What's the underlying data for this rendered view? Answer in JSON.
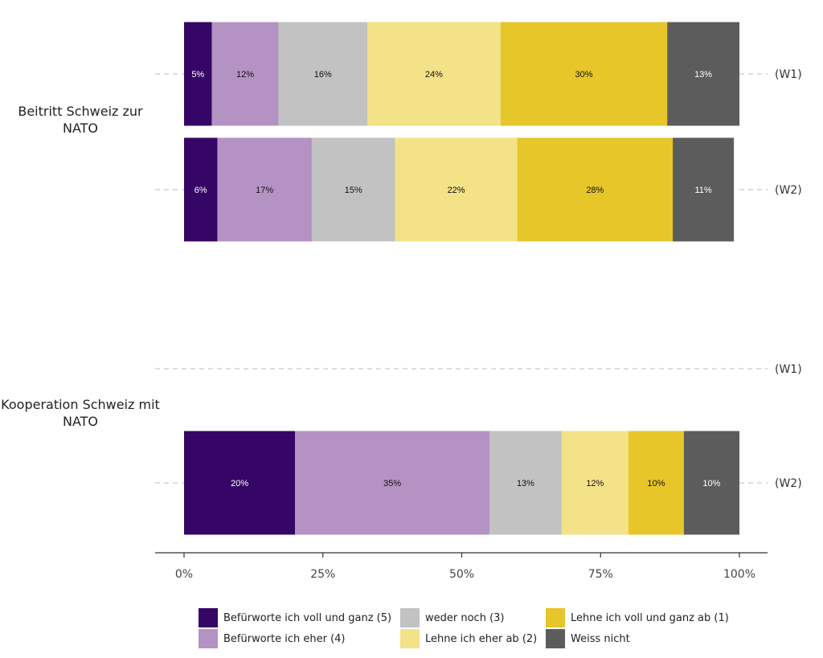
{
  "chart_data": {
    "type": "bar",
    "orientation": "horizontal",
    "stacked": true,
    "xlim": [
      0,
      100
    ],
    "x_ticks": [
      "0%",
      "25%",
      "50%",
      "75%",
      "100%"
    ],
    "groups": [
      {
        "label": "Beitritt Schweiz zur NATO",
        "rows": [
          {
            "wave": "(W1)",
            "values": [
              5,
              12,
              16,
              24,
              30,
              13
            ]
          },
          {
            "wave": "(W2)",
            "values": [
              6,
              17,
              15,
              22,
              28,
              11
            ]
          }
        ]
      },
      {
        "label": "Kooperation Schweiz mit NATO",
        "rows": [
          {
            "wave": "(W1)",
            "values": []
          },
          {
            "wave": "(W2)",
            "values": [
              20,
              35,
              13,
              12,
              10,
              10
            ]
          }
        ]
      }
    ],
    "series": [
      {
        "name": "Befürworte ich voll und ganz (5)",
        "color": "#350665"
      },
      {
        "name": "Befürworte ich eher (4)",
        "color": "#b492c4"
      },
      {
        "name": "weder noch (3)",
        "color": "#c2c2c2"
      },
      {
        "name": "Lehne ich eher ab (2)",
        "color": "#f3e288"
      },
      {
        "name": "Lehne ich voll und ganz ab (1)",
        "color": "#e6c629"
      },
      {
        "name": "Weiss nicht",
        "color": "#5c5c5c"
      }
    ],
    "legend_position": "bottom",
    "grid": false
  }
}
